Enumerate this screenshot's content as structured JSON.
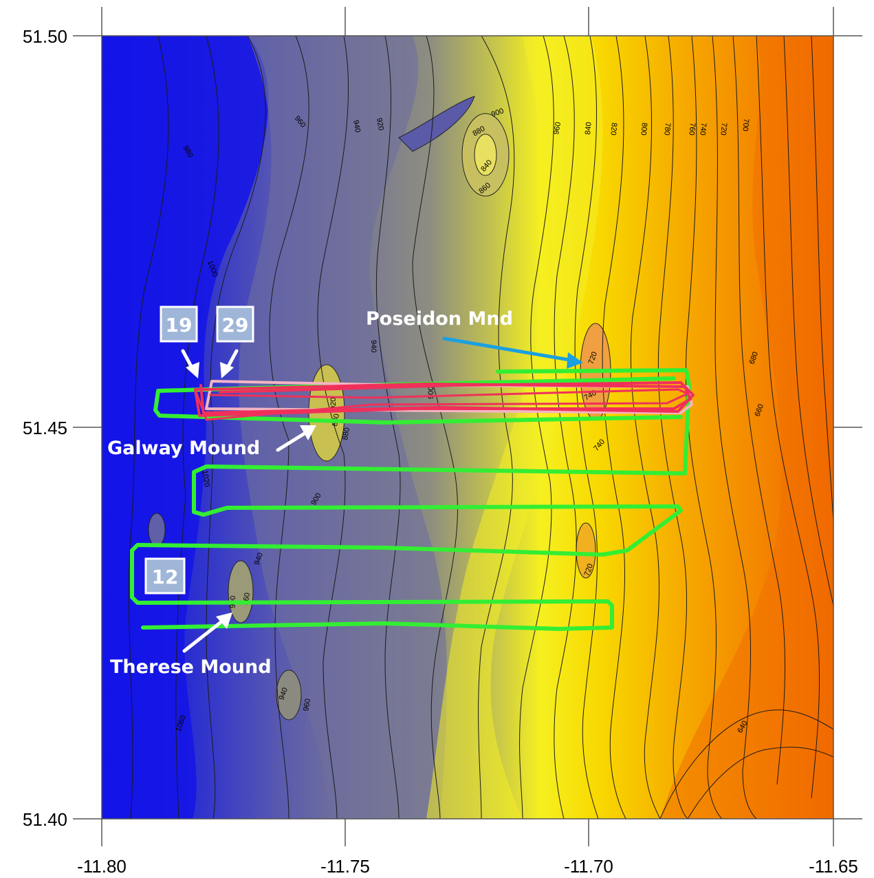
{
  "map": {
    "x_ticks": [
      "-11.80",
      "-11.75",
      "-11.70",
      "-11.65"
    ],
    "y_ticks": [
      "51.50",
      "51.45",
      "51.40"
    ],
    "contour_labels": [
      "960",
      "940",
      "920",
      "900",
      "880",
      "840",
      "860",
      "960",
      "840",
      "820",
      "800",
      "780",
      "760",
      "740",
      "720",
      "700",
      "980",
      "1000",
      "940",
      "900",
      "900",
      "740",
      "740",
      "880",
      "880",
      "900",
      "940",
      "960",
      "940",
      "960",
      "1060",
      "720",
      "680",
      "660",
      "640",
      "720",
      "1020",
      "920"
    ],
    "annotations": {
      "poseidon": "Poseidon Mnd",
      "galway": "Galway Mound",
      "therese": "Therese Mound"
    },
    "badges": [
      "19",
      "29",
      "12"
    ],
    "colors": {
      "deep": "#1f23d8",
      "mid": "#8c8c84",
      "shallow_yellow": "#f7e300",
      "shallow_orange": "#f26a00",
      "track_green": "#33ee33",
      "track_red": "#f0305a",
      "track_pink": "#f4b4c4",
      "badge_bg": "#9fb6d8",
      "arrow_blue": "#1ba0e0"
    }
  }
}
